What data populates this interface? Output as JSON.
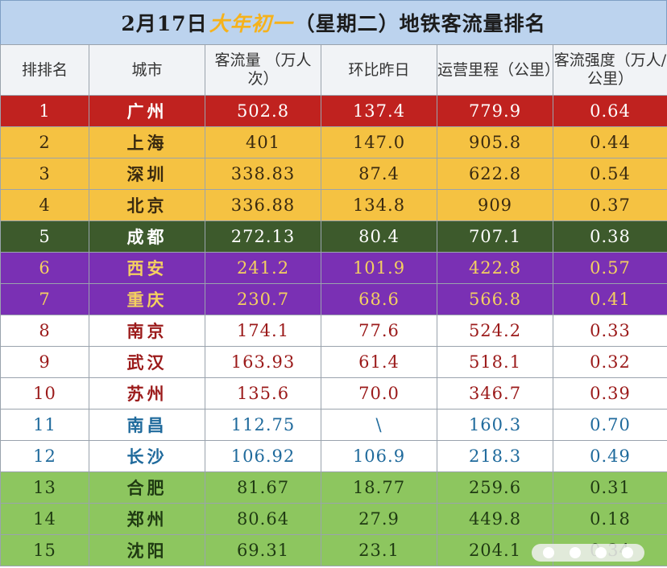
{
  "title": {
    "date": "2月17日",
    "holiday": "大年初一",
    "rest": "（星期二）地铁客流量排名"
  },
  "headers": {
    "rank": "排排名",
    "city": "城市",
    "ridership": "客流量 （万人次）",
    "change": "环比昨日",
    "mileage": "运营里程（公里）",
    "intensity": "客流强度（万人/公里）"
  },
  "rows": [
    {
      "rank": "1",
      "city": "广州",
      "ridership": "502.8",
      "change": "137.4",
      "mileage": "779.9",
      "intensity": "0.64",
      "style": "red"
    },
    {
      "rank": "2",
      "city": "上海",
      "ridership": "401",
      "change": "147.0",
      "mileage": "905.8",
      "intensity": "0.44",
      "style": "orange"
    },
    {
      "rank": "3",
      "city": "深圳",
      "ridership": "338.83",
      "change": "87.4",
      "mileage": "622.8",
      "intensity": "0.54",
      "style": "orange"
    },
    {
      "rank": "4",
      "city": "北京",
      "ridership": "336.88",
      "change": "134.8",
      "mileage": "909",
      "intensity": "0.37",
      "style": "orange"
    },
    {
      "rank": "5",
      "city": "成都",
      "ridership": "272.13",
      "change": "80.4",
      "mileage": "707.1",
      "intensity": "0.38",
      "style": "green"
    },
    {
      "rank": "6",
      "city": "西安",
      "ridership": "241.2",
      "change": "101.9",
      "mileage": "422.8",
      "intensity": "0.57",
      "style": "purple"
    },
    {
      "rank": "7",
      "city": "重庆",
      "ridership": "230.7",
      "change": "68.6",
      "mileage": "566.8",
      "intensity": "0.41",
      "style": "purple"
    },
    {
      "rank": "8",
      "city": "南京",
      "ridership": "174.1",
      "change": "77.6",
      "mileage": "524.2",
      "intensity": "0.33",
      "style": "white-red"
    },
    {
      "rank": "9",
      "city": "武汉",
      "ridership": "163.93",
      "change": "61.4",
      "mileage": "518.1",
      "intensity": "0.32",
      "style": "white-red"
    },
    {
      "rank": "10",
      "city": "苏州",
      "ridership": "135.6",
      "change": "70.0",
      "mileage": "346.7",
      "intensity": "0.39",
      "style": "white-red"
    },
    {
      "rank": "11",
      "city": "南昌",
      "ridership": "112.75",
      "change": "\\",
      "mileage": "160.3",
      "intensity": "0.70",
      "style": "white-blue"
    },
    {
      "rank": "12",
      "city": "长沙",
      "ridership": "106.92",
      "change": "106.9",
      "mileage": "218.3",
      "intensity": "0.49",
      "style": "white-blue"
    },
    {
      "rank": "13",
      "city": "合肥",
      "ridership": "81.67",
      "change": "18.77",
      "mileage": "259.6",
      "intensity": "0.31",
      "style": "lightgreen"
    },
    {
      "rank": "14",
      "city": "郑州",
      "ridership": "80.64",
      "change": "27.9",
      "mileage": "449.8",
      "intensity": "0.18",
      "style": "lightgreen"
    },
    {
      "rank": "15",
      "city": "沈阳",
      "ridership": "69.31",
      "change": "23.1",
      "mileage": "204.1",
      "intensity": "0.34",
      "style": "lightgreen"
    }
  ],
  "colors": {
    "red": "#c0221f",
    "orange": "#f5c242",
    "green": "#3d5a2c",
    "purple": "#7a30b4",
    "lightgreen": "#8dc65f",
    "title_bg": "#bcd3ee",
    "holiday_text": "#f6b21b"
  }
}
